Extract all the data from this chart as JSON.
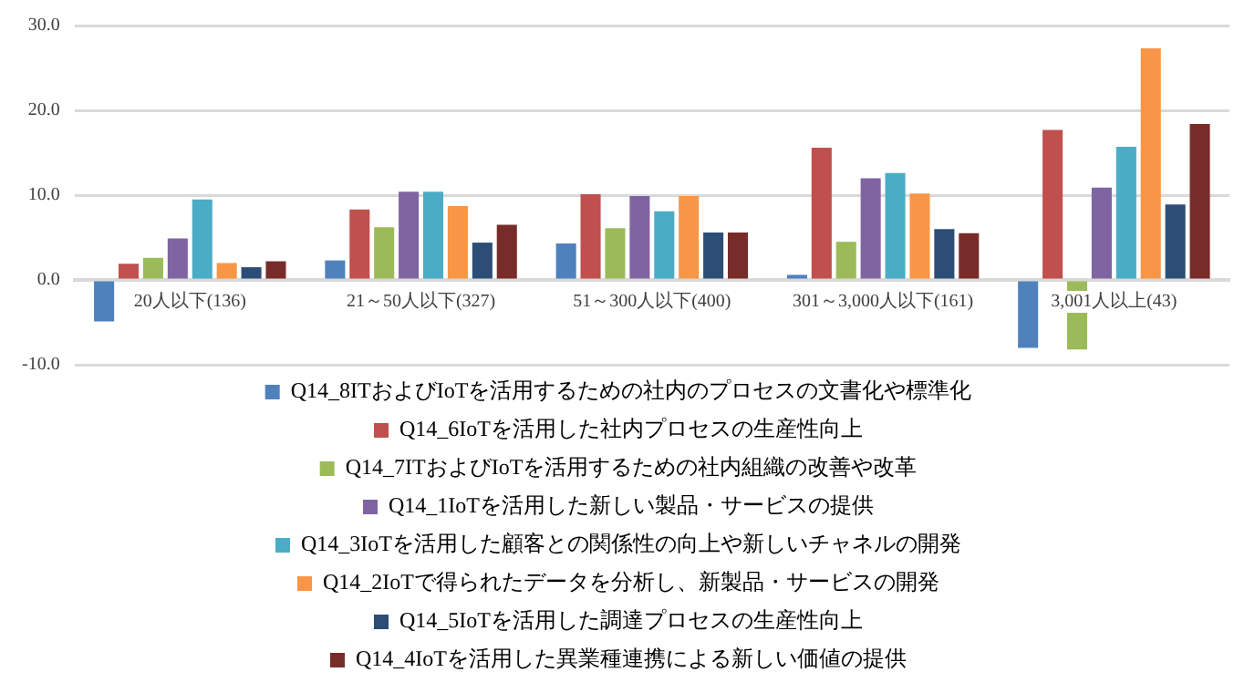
{
  "chart_data": {
    "type": "bar",
    "categories": [
      "20人以下(136)",
      "21～50人以下(327)",
      "51～300人以下(400)",
      "301～3,000人以下(161)",
      "3,001人以上(43)"
    ],
    "series": [
      {
        "name": "Q14_8ITおよびIoTを活用するための社内のプロセスの文書化や標準化",
        "color": "#4f81bd",
        "values": [
          -4.9,
          2.3,
          4.3,
          0.6,
          -8.0
        ]
      },
      {
        "name": "Q14_6IoTを活用した社内プロセスの生産性向上",
        "color": "#c0504d",
        "values": [
          1.9,
          8.3,
          10.1,
          15.6,
          17.7
        ]
      },
      {
        "name": "Q14_7ITおよびIoTを活用するための社内組織の改善や改革",
        "color": "#9bbb59",
        "values": [
          2.6,
          6.2,
          6.1,
          4.5,
          -8.2
        ]
      },
      {
        "name": "Q14_1IoTを活用した新しい製品・サービスの提供",
        "color": "#8064a2",
        "values": [
          4.9,
          10.4,
          9.9,
          12.0,
          10.9
        ]
      },
      {
        "name": "Q14_3IoTを活用した顧客との関係性の向上や新しいチャネルの開発",
        "color": "#4bacc6",
        "values": [
          9.5,
          10.4,
          8.1,
          12.6,
          15.7
        ]
      },
      {
        "name": "Q14_2IoTで得られたデータを分析し、新製品・サービスの開発",
        "color": "#f79646",
        "values": [
          2.0,
          8.7,
          9.9,
          10.2,
          27.3
        ]
      },
      {
        "name": "Q14_5IoTを活用した調達プロセスの生産性向上",
        "color": "#2c4d75",
        "values": [
          1.5,
          4.4,
          5.6,
          6.0,
          8.9
        ]
      },
      {
        "name": "Q14_4IoTを活用した異業種連携による新しい価値の提供",
        "color": "#772c2a",
        "values": [
          2.2,
          6.5,
          5.6,
          5.5,
          18.4
        ]
      }
    ],
    "ylim": [
      -10,
      30
    ],
    "yticks": [
      {
        "value": -10,
        "label": "-10.0"
      },
      {
        "value": 0,
        "label": "0.0"
      },
      {
        "value": 10,
        "label": "10.0"
      },
      {
        "value": 20,
        "label": "20.0"
      },
      {
        "value": 30,
        "label": "30.0"
      }
    ],
    "grid": "y",
    "legend": "bottom"
  }
}
